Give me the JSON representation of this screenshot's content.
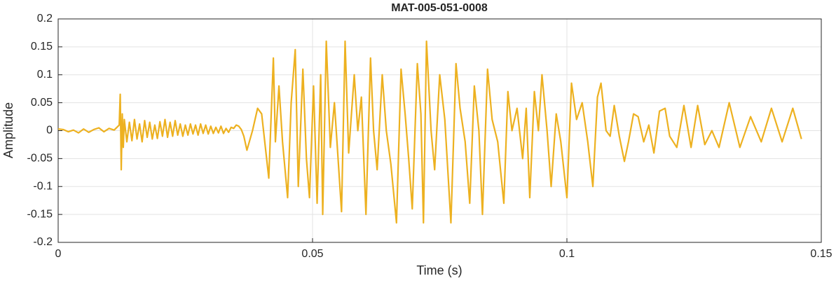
{
  "chart_data": {
    "type": "line",
    "title": "MAT-005-051-0008",
    "xlabel": "Time (s)",
    "ylabel": "Amplitude",
    "xlim": [
      0,
      0.15
    ],
    "ylim": [
      -0.2,
      0.2
    ],
    "xticks": [
      0,
      0.05,
      0.1,
      0.15
    ],
    "yticks": [
      -0.2,
      -0.15,
      -0.1,
      -0.05,
      0,
      0.05,
      0.1,
      0.15,
      0.2
    ],
    "grid": true,
    "series": [
      {
        "name": "Amplitude",
        "color": "#EDB120",
        "x": [
          0,
          0.001,
          0.002,
          0.003,
          0.004,
          0.005,
          0.006,
          0.007,
          0.008,
          0.009,
          0.01,
          0.011,
          0.012,
          0.0122,
          0.0124,
          0.0126,
          0.0128,
          0.013,
          0.0135,
          0.014,
          0.0145,
          0.015,
          0.0155,
          0.016,
          0.0165,
          0.017,
          0.0175,
          0.018,
          0.0185,
          0.019,
          0.0195,
          0.02,
          0.0205,
          0.021,
          0.0215,
          0.022,
          0.0225,
          0.023,
          0.0235,
          0.024,
          0.0245,
          0.025,
          0.0255,
          0.026,
          0.0265,
          0.027,
          0.0275,
          0.028,
          0.0285,
          0.029,
          0.0295,
          0.03,
          0.0305,
          0.031,
          0.0315,
          0.032,
          0.0325,
          0.033,
          0.0335,
          0.034,
          0.0345,
          0.035,
          0.0355,
          0.036,
          0.0365,
          0.0371,
          0.0382,
          0.0392,
          0.04,
          0.0414,
          0.0423,
          0.0427,
          0.0434,
          0.0441,
          0.0451,
          0.0458,
          0.0466,
          0.0472,
          0.0481,
          0.0488,
          0.0494,
          0.0502,
          0.0509,
          0.0516,
          0.052,
          0.0527,
          0.0535,
          0.0543,
          0.0557,
          0.0564,
          0.0571,
          0.0582,
          0.0589,
          0.0596,
          0.0605,
          0.0614,
          0.062,
          0.0627,
          0.0637,
          0.0645,
          0.0654,
          0.0665,
          0.0674,
          0.0682,
          0.0689,
          0.0696,
          0.0706,
          0.0713,
          0.0718,
          0.0724,
          0.0733,
          0.074,
          0.075,
          0.076,
          0.0772,
          0.0782,
          0.079,
          0.08,
          0.0809,
          0.0818,
          0.0827,
          0.0834,
          0.0844,
          0.0853,
          0.0864,
          0.0876,
          0.0884,
          0.0892,
          0.0902,
          0.0913,
          0.092,
          0.0927,
          0.0936,
          0.0944,
          0.0951,
          0.0961,
          0.0969,
          0.0979,
          0.0988,
          0.1,
          0.1009,
          0.1019,
          0.103,
          0.1041,
          0.1051,
          0.106,
          0.1067,
          0.1077,
          0.1085,
          0.1093,
          0.1103,
          0.1113,
          0.1121,
          0.1131,
          0.114,
          0.1151,
          0.1161,
          0.1171,
          0.1182,
          0.1193,
          0.1202,
          0.1216,
          0.123,
          0.1244,
          0.1257,
          0.1271,
          0.1285,
          0.1299,
          0.1319,
          0.134,
          0.1361,
          0.1382,
          0.1402,
          0.1423,
          0.1444,
          0.1461
        ],
        "values": [
          0.003,
          0.002,
          -0.002,
          0.001,
          -0.004,
          0.003,
          -0.003,
          0.002,
          0.005,
          -0.002,
          0.004,
          0.001,
          0.01,
          0.065,
          -0.07,
          0.03,
          -0.03,
          0.02,
          -0.02,
          0.015,
          -0.018,
          0.02,
          -0.015,
          0.012,
          -0.02,
          0.018,
          -0.012,
          0.015,
          -0.015,
          0.01,
          -0.014,
          0.016,
          -0.01,
          0.02,
          -0.012,
          0.015,
          -0.01,
          0.018,
          -0.008,
          0.012,
          -0.01,
          0.01,
          -0.008,
          0.012,
          -0.006,
          0.01,
          -0.008,
          0.012,
          -0.005,
          0.01,
          -0.006,
          0.008,
          -0.005,
          0.006,
          -0.004,
          0.008,
          -0.005,
          0.004,
          -0.003,
          0.006,
          0.004,
          0.01,
          0.008,
          0.002,
          -0.01,
          -0.035,
          0.0,
          0.04,
          0.03,
          -0.085,
          0.13,
          -0.02,
          0.08,
          -0.02,
          -0.12,
          0.05,
          0.145,
          -0.1,
          0.11,
          -0.05,
          -0.12,
          0.08,
          -0.13,
          0.1,
          -0.15,
          0.16,
          -0.03,
          0.05,
          -0.145,
          0.16,
          -0.04,
          0.1,
          0.0,
          0.06,
          -0.15,
          0.13,
          0.0,
          -0.07,
          0.1,
          0.0,
          -0.06,
          -0.165,
          0.11,
          0.03,
          -0.05,
          -0.14,
          0.12,
          0.03,
          -0.165,
          0.16,
          0.0,
          -0.07,
          0.1,
          0.02,
          -0.165,
          0.12,
          0.04,
          -0.02,
          -0.13,
          0.08,
          0.0,
          -0.15,
          0.11,
          0.02,
          -0.02,
          -0.13,
          0.07,
          0.0,
          0.04,
          -0.05,
          0.04,
          -0.12,
          0.07,
          0.0,
          0.1,
          0.0,
          -0.1,
          0.03,
          -0.02,
          -0.12,
          0.085,
          0.02,
          0.05,
          -0.02,
          -0.1,
          0.06,
          0.085,
          0.0,
          -0.01,
          0.045,
          -0.01,
          -0.055,
          -0.02,
          0.03,
          0.025,
          -0.02,
          0.01,
          -0.04,
          0.035,
          0.04,
          -0.01,
          -0.03,
          0.045,
          -0.03,
          0.045,
          -0.025,
          0.0,
          -0.03,
          0.05,
          -0.03,
          0.025,
          -0.02,
          0.04,
          -0.02,
          0.04,
          -0.015
        ]
      }
    ]
  }
}
